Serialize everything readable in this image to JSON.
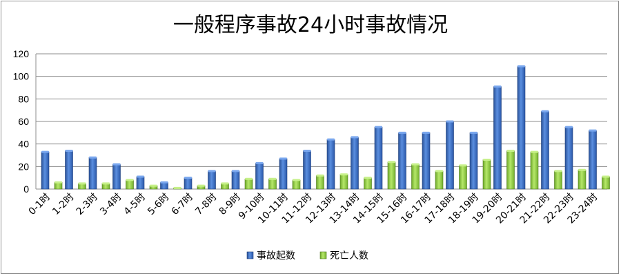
{
  "chart_data": {
    "type": "bar",
    "title": "一般程序事故24小时事故情况",
    "xlabel": "",
    "ylabel": "",
    "ylim": [
      0,
      120
    ],
    "yticks": [
      0,
      20,
      40,
      60,
      80,
      100,
      120
    ],
    "grid": true,
    "legend_position": "bottom",
    "categories": [
      "0-1时",
      "1-2时",
      "2-3时",
      "3-4时",
      "4-5时",
      "5-6时",
      "6-7时",
      "7-8时",
      "8-9时",
      "9-10时",
      "10-11时",
      "11-12时",
      "12-13时",
      "13-14时",
      "14-15时",
      "15-16时",
      "16-17时",
      "17-18时",
      "18-19时",
      "19-20时",
      "20-21时",
      "21-22时",
      "22-23时",
      "23-24时"
    ],
    "series": [
      {
        "name": "事故起数",
        "color": "#3a6fc4",
        "values": [
          33,
          34,
          28,
          22,
          11,
          6,
          10,
          16,
          16,
          23,
          27,
          34,
          44,
          46,
          55,
          50,
          50,
          60,
          50,
          91,
          109,
          69,
          55,
          52
        ]
      },
      {
        "name": "死亡人数",
        "color": "#8fce3c",
        "values": [
          6,
          5,
          5,
          8,
          3,
          1,
          3,
          5,
          9,
          9,
          8,
          12,
          13,
          10,
          24,
          22,
          16,
          21,
          26,
          34,
          33,
          16,
          17,
          11
        ]
      }
    ]
  }
}
